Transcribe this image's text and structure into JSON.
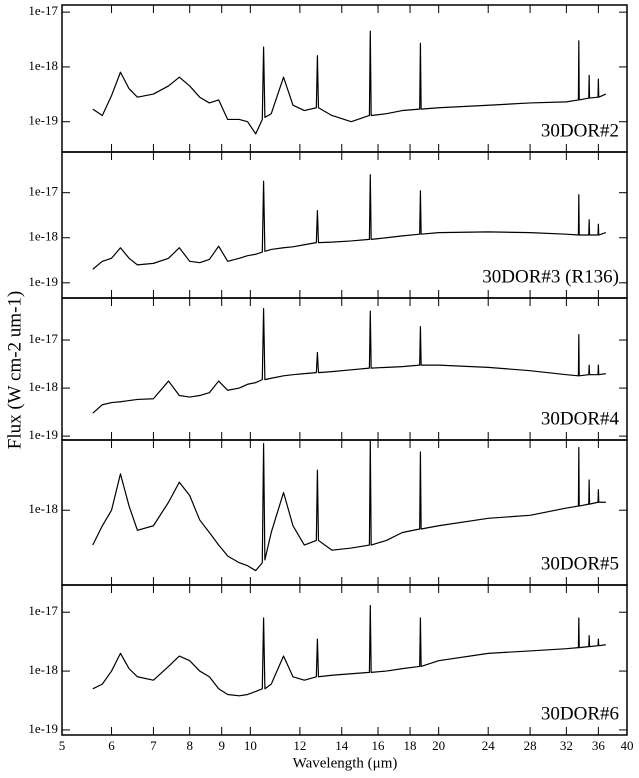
{
  "xlabel": "Wavelength (μm)",
  "ylabel": "Flux (W cm-2 um-1)",
  "xlim": [
    5,
    40
  ],
  "xticks": [
    5,
    6,
    7,
    8,
    9,
    10,
    12,
    14,
    16,
    18,
    20,
    24,
    28,
    32,
    36,
    40
  ],
  "chart_data": [
    {
      "type": "line",
      "label": "30DOR#2",
      "log_y": true,
      "color": "#000000",
      "ylim": [
        2.8e-20,
        1.35e-17
      ],
      "yticks": [
        {
          "value": 1e-17,
          "label": "1e-17"
        },
        {
          "value": 1e-18,
          "label": "1e-18"
        },
        {
          "value": 1e-19,
          "label": "1e-19"
        }
      ],
      "x": [
        5.6,
        5.8,
        6.0,
        6.2,
        6.4,
        6.6,
        7.0,
        7.4,
        7.7,
        8.0,
        8.3,
        8.6,
        8.9,
        9.2,
        9.6,
        9.9,
        10.2,
        10.45,
        10.5,
        10.55,
        10.8,
        11.3,
        11.7,
        12.2,
        12.75,
        12.8,
        12.85,
        13.5,
        14.5,
        15.5,
        15.55,
        15.6,
        16.5,
        17.5,
        18.65,
        18.7,
        18.75,
        20,
        24,
        28,
        32,
        33.45,
        33.5,
        33.55,
        34.75,
        34.8,
        34.85,
        35.95,
        36,
        36.05,
        37
      ],
      "values": [
        1.7e-19,
        1.3e-19,
        3e-19,
        8e-19,
        4e-19,
        2.8e-19,
        3.2e-19,
        4.5e-19,
        6.5e-19,
        4.5e-19,
        2.8e-19,
        2.2e-19,
        2.5e-19,
        1.1e-19,
        1.1e-19,
        1e-19,
        6e-20,
        1.1e-19,
        2.3e-18,
        1.2e-19,
        1.4e-19,
        6.5e-19,
        2e-19,
        1.6e-19,
        1.8e-19,
        1.6e-18,
        1.8e-19,
        1.3e-19,
        1e-19,
        1.3e-19,
        4.5e-18,
        1.3e-19,
        1.4e-19,
        1.6e-19,
        1.7e-19,
        2.7e-18,
        1.7e-19,
        1.8e-19,
        2e-19,
        2.2e-19,
        2.3e-19,
        2.5e-19,
        3e-18,
        2.5e-19,
        2.7e-19,
        7e-19,
        2.7e-19,
        2.8e-19,
        6e-19,
        2.8e-19,
        3.2e-19
      ]
    },
    {
      "type": "line",
      "label": "30DOR#3 (R136)",
      "log_y": true,
      "color": "#000000",
      "ylim": [
        4.6e-20,
        8e-17
      ],
      "yticks": [
        {
          "value": 1e-17,
          "label": "1e-17"
        },
        {
          "value": 1e-18,
          "label": "1e-18"
        },
        {
          "value": 1e-19,
          "label": "1e-19"
        }
      ],
      "x": [
        5.6,
        5.8,
        6.0,
        6.2,
        6.4,
        6.6,
        7.0,
        7.4,
        7.7,
        8.0,
        8.3,
        8.6,
        8.9,
        9.2,
        9.6,
        9.9,
        10.2,
        10.45,
        10.5,
        10.55,
        10.8,
        11.3,
        11.7,
        12.2,
        12.75,
        12.8,
        12.85,
        13.5,
        14.5,
        15.5,
        15.55,
        15.6,
        16.5,
        17.5,
        18.65,
        18.7,
        18.75,
        20,
        24,
        28,
        32,
        33.45,
        33.5,
        33.55,
        34.75,
        34.8,
        34.85,
        35.95,
        36,
        36.05,
        37
      ],
      "values": [
        2e-19,
        3e-19,
        3.5e-19,
        6e-19,
        3.5e-19,
        2.5e-19,
        2.7e-19,
        3.5e-19,
        6e-19,
        3e-19,
        2.8e-19,
        3.3e-19,
        6.5e-19,
        3e-19,
        3.5e-19,
        4e-19,
        4.3e-19,
        4.8e-19,
        1.8e-17,
        5e-19,
        5.5e-19,
        6e-19,
        6.3e-19,
        7e-19,
        7.8e-19,
        4e-18,
        7.8e-19,
        8e-19,
        8.5e-19,
        9.2e-19,
        2.5e-17,
        9.2e-19,
        1e-18,
        1.1e-18,
        1.2e-18,
        1.1e-17,
        1.2e-18,
        1.3e-18,
        1.35e-18,
        1.3e-18,
        1.2e-18,
        1.15e-18,
        9e-18,
        1.15e-18,
        1.15e-18,
        2.5e-18,
        1.15e-18,
        1.15e-18,
        2e-18,
        1.15e-18,
        1.3e-18
      ]
    },
    {
      "type": "line",
      "label": "30DOR#4",
      "log_y": true,
      "color": "#000000",
      "ylim": [
        8.3e-20,
        7.5e-17
      ],
      "yticks": [
        {
          "value": 1e-17,
          "label": "1e-17"
        },
        {
          "value": 1e-18,
          "label": "1e-18"
        },
        {
          "value": 1e-19,
          "label": "1e-19"
        }
      ],
      "x": [
        5.6,
        5.8,
        6.0,
        6.2,
        6.4,
        6.6,
        7.0,
        7.4,
        7.7,
        8.0,
        8.3,
        8.6,
        8.9,
        9.2,
        9.6,
        9.9,
        10.2,
        10.45,
        10.5,
        10.55,
        10.8,
        11.3,
        11.7,
        12.2,
        12.75,
        12.8,
        12.85,
        13.5,
        14.5,
        15.5,
        15.55,
        15.6,
        16.5,
        17.5,
        18.65,
        18.7,
        18.75,
        20,
        24,
        28,
        32,
        33.45,
        33.5,
        33.55,
        34.75,
        34.8,
        34.85,
        35.95,
        36,
        36.05,
        37
      ],
      "values": [
        3e-19,
        4.5e-19,
        5e-19,
        5.2e-19,
        5.5e-19,
        5.8e-19,
        6e-19,
        1.4e-18,
        7e-19,
        6.5e-19,
        7e-19,
        8e-19,
        1.4e-18,
        9e-19,
        1e-18,
        1.2e-18,
        1.3e-18,
        1.5e-18,
        4.5e-17,
        1.5e-18,
        1.6e-18,
        1.8e-18,
        1.9e-18,
        2e-18,
        2.1e-18,
        5.5e-18,
        2.1e-18,
        2.2e-18,
        2.4e-18,
        2.6e-18,
        4e-17,
        2.6e-18,
        2.7e-18,
        2.8e-18,
        3e-18,
        1.9e-17,
        3e-18,
        3e-18,
        2.7e-18,
        2.3e-18,
        1.9e-18,
        1.8e-18,
        1.3e-17,
        1.8e-18,
        1.9e-18,
        3e-18,
        1.9e-18,
        1.9e-18,
        3e-18,
        1.9e-18,
        2e-18
      ]
    },
    {
      "type": "line",
      "label": "30DOR#5",
      "log_y": true,
      "color": "#000000",
      "ylim": [
        1.8e-19,
        5e-18
      ],
      "yticks": [
        {
          "value": 1e-18,
          "label": "1e-18"
        }
      ],
      "x": [
        5.6,
        5.8,
        6.0,
        6.2,
        6.4,
        6.6,
        7.0,
        7.4,
        7.7,
        8.0,
        8.3,
        8.6,
        8.9,
        9.2,
        9.6,
        9.9,
        10.2,
        10.45,
        10.5,
        10.55,
        10.8,
        11.3,
        11.7,
        12.2,
        12.75,
        12.8,
        12.85,
        13.5,
        14.5,
        15.5,
        15.55,
        15.6,
        16.5,
        17.5,
        18.65,
        18.7,
        18.75,
        20,
        24,
        28,
        32,
        33.45,
        33.5,
        33.55,
        34.75,
        34.8,
        34.85,
        35.95,
        36,
        36.05,
        37
      ],
      "values": [
        4.5e-19,
        7e-19,
        1e-18,
        2.3e-18,
        1.1e-18,
        6.3e-19,
        7e-19,
        1.2e-18,
        1.9e-18,
        1.4e-18,
        8e-19,
        6e-19,
        4.5e-19,
        3.5e-19,
        3e-19,
        2.8e-19,
        2.5e-19,
        3e-19,
        4.6e-18,
        3.2e-19,
        6e-19,
        1.5e-18,
        7e-19,
        4.5e-19,
        5e-19,
        2.5e-18,
        5e-19,
        4e-19,
        4.2e-19,
        4.5e-19,
        4.9e-18,
        4.5e-19,
        5e-19,
        6e-19,
        6.5e-19,
        3.8e-18,
        6.5e-19,
        7e-19,
        8.3e-19,
        8.9e-19,
        1.05e-18,
        1.1e-18,
        4.2e-18,
        1.1e-18,
        1.15e-18,
        2e-18,
        1.15e-18,
        1.2e-18,
        1.6e-18,
        1.2e-18,
        1.2e-18
      ]
    },
    {
      "type": "line",
      "label": "30DOR#6",
      "log_y": true,
      "color": "#000000",
      "ylim": [
        8.2e-20,
        2.9e-17
      ],
      "yticks": [
        {
          "value": 1e-17,
          "label": "1e-17"
        },
        {
          "value": 1e-18,
          "label": "1e-18"
        },
        {
          "value": 1e-19,
          "label": "1e-19"
        }
      ],
      "x": [
        5.6,
        5.8,
        6.0,
        6.2,
        6.4,
        6.6,
        7.0,
        7.4,
        7.7,
        8.0,
        8.3,
        8.6,
        8.9,
        9.2,
        9.6,
        9.9,
        10.2,
        10.45,
        10.5,
        10.55,
        10.8,
        11.3,
        11.7,
        12.2,
        12.75,
        12.8,
        12.85,
        13.5,
        14.5,
        15.5,
        15.55,
        15.6,
        16.5,
        17.5,
        18.65,
        18.7,
        18.75,
        20,
        24,
        28,
        32,
        33.45,
        33.5,
        33.55,
        34.75,
        34.8,
        34.85,
        35.95,
        36,
        36.05,
        37
      ],
      "values": [
        5e-19,
        6e-19,
        1e-18,
        2e-18,
        1.1e-18,
        8e-19,
        7e-19,
        1.2e-18,
        1.8e-18,
        1.5e-18,
        1e-18,
        8e-19,
        5e-19,
        4e-19,
        3.8e-19,
        4e-19,
        4.5e-19,
        5e-19,
        8e-18,
        5e-19,
        6e-19,
        1.8e-18,
        8e-19,
        7e-19,
        8e-19,
        3.5e-18,
        8e-19,
        8.5e-19,
        9e-19,
        9.5e-19,
        1.3e-17,
        9.5e-19,
        1e-18,
        1.1e-18,
        1.2e-18,
        8e-18,
        1.2e-18,
        1.5e-18,
        2e-18,
        2.2e-18,
        2.4e-18,
        2.5e-18,
        8e-18,
        2.5e-18,
        2.6e-18,
        4e-18,
        2.6e-18,
        2.7e-18,
        3.5e-18,
        2.7e-18,
        2.8e-18
      ]
    }
  ]
}
